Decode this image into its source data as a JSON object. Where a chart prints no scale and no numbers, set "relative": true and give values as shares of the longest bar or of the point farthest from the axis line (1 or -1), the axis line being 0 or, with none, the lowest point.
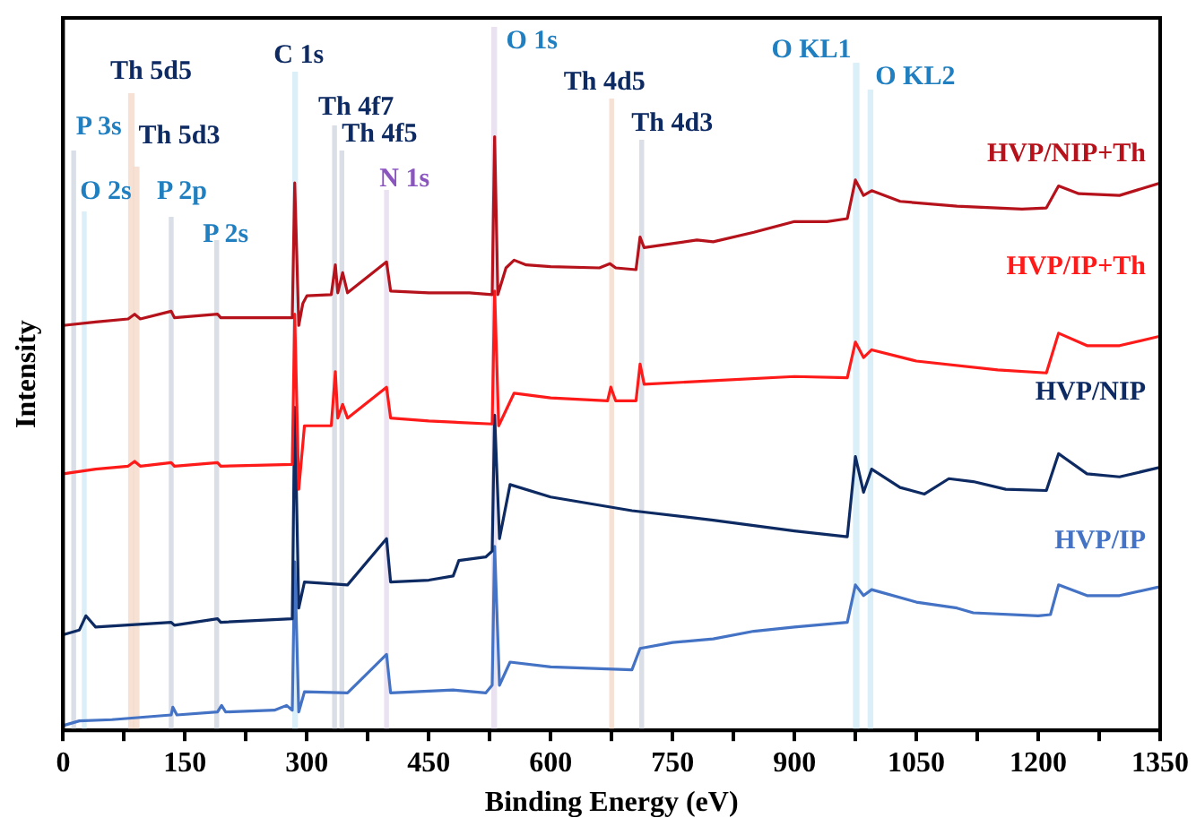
{
  "chart_data": {
    "type": "line",
    "xlabel": "Binding Energy (eV)",
    "ylabel": "Intensity",
    "relative": true,
    "legend": false,
    "grid": false,
    "marker": "none",
    "line_style": "solid",
    "xlim": [
      0,
      1350
    ],
    "xticks": [
      0,
      {
        "value": 75,
        "label": null
      },
      150,
      {
        "value": 225,
        "label": null
      },
      300,
      {
        "value": 375,
        "label": null
      },
      450,
      {
        "value": 525,
        "label": null
      },
      600,
      {
        "value": 675,
        "label": null
      },
      750,
      {
        "value": 825,
        "label": null
      },
      900,
      {
        "value": 975,
        "label": null
      },
      1050,
      {
        "value": 1125,
        "label": null
      },
      1200,
      {
        "value": 1275,
        "label": null
      },
      1350
    ],
    "series": [
      {
        "name": "HVP/NIP+Th",
        "color": "#b5121b",
        "x": [
          0,
          40,
          80,
          88,
          95,
          133,
          137,
          190,
          194,
          240,
          282,
          285,
          290,
          295,
          300,
          330,
          335,
          338,
          344,
          350,
          398,
          403,
          450,
          500,
          528,
          531,
          535,
          545,
          555,
          570,
          600,
          660,
          673,
          680,
          705,
          710,
          715,
          740,
          780,
          800,
          850,
          900,
          940,
          965,
          975,
          985,
          995,
          1030,
          1100,
          1180,
          1210,
          1225,
          1250,
          1300,
          1350
        ],
        "values": [
          0.682,
          0.688,
          0.693,
          0.701,
          0.693,
          0.706,
          0.695,
          0.701,
          0.695,
          0.695,
          0.695,
          0.922,
          0.682,
          0.719,
          0.732,
          0.734,
          0.784,
          0.737,
          0.771,
          0.737,
          0.789,
          0.74,
          0.737,
          0.737,
          0.734,
          1,
          0.734,
          0.779,
          0.792,
          0.784,
          0.781,
          0.779,
          0.786,
          0.779,
          0.776,
          0.831,
          0.813,
          0.818,
          0.826,
          0.823,
          0.839,
          0.857,
          0.857,
          0.862,
          0.927,
          0.901,
          0.909,
          0.891,
          0.883,
          0.878,
          0.88,
          0.917,
          0.904,
          0.901,
          0.922
        ]
      },
      {
        "name": "HVP/IP+Th",
        "color": "#ff1a1a",
        "x": [
          0,
          40,
          80,
          88,
          95,
          133,
          137,
          190,
          194,
          282,
          285,
          290,
          297,
          330,
          335,
          338,
          344,
          350,
          398,
          403,
          450,
          528,
          531,
          536,
          555,
          600,
          670,
          674,
          680,
          705,
          710,
          715,
          800,
          900,
          965,
          975,
          985,
          995,
          1050,
          1150,
          1210,
          1225,
          1260,
          1300,
          1350
        ],
        "values": [
          0.432,
          0.44,
          0.445,
          0.453,
          0.445,
          0.451,
          0.445,
          0.451,
          0.445,
          0.448,
          0.701,
          0.406,
          0.513,
          0.513,
          0.604,
          0.526,
          0.549,
          0.526,
          0.578,
          0.526,
          0.521,
          0.516,
          0.74,
          0.513,
          0.568,
          0.56,
          0.555,
          0.578,
          0.555,
          0.555,
          0.617,
          0.583,
          0.589,
          0.596,
          0.594,
          0.654,
          0.628,
          0.641,
          0.622,
          0.607,
          0.602,
          0.669,
          0.648,
          0.648,
          0.664
        ]
      },
      {
        "name": "HVP/NIP",
        "color": "#0d2a62",
        "x": [
          0,
          20,
          28,
          40,
          133,
          137,
          190,
          194,
          282,
          285,
          290,
          297,
          350,
          398,
          403,
          450,
          480,
          487,
          520,
          528,
          531,
          537,
          550,
          600,
          700,
          800,
          900,
          965,
          975,
          985,
          995,
          1030,
          1060,
          1090,
          1120,
          1160,
          1210,
          1225,
          1260,
          1300,
          1350
        ],
        "values": [
          0.161,
          0.169,
          0.193,
          0.174,
          0.182,
          0.177,
          0.188,
          0.182,
          0.188,
          0.544,
          0.206,
          0.25,
          0.245,
          0.323,
          0.25,
          0.253,
          0.26,
          0.286,
          0.292,
          0.302,
          0.531,
          0.323,
          0.414,
          0.393,
          0.37,
          0.354,
          0.336,
          0.326,
          0.461,
          0.401,
          0.44,
          0.409,
          0.398,
          0.424,
          0.419,
          0.406,
          0.404,
          0.466,
          0.432,
          0.427,
          0.443
        ]
      },
      {
        "name": "HVP/IP",
        "color": "#4472c4",
        "x": [
          0,
          20,
          60,
          133,
          135,
          140,
          190,
          195,
          200,
          260,
          275,
          282,
          285,
          290,
          297,
          350,
          398,
          403,
          480,
          520,
          528,
          531,
          537,
          550,
          600,
          700,
          710,
          750,
          800,
          850,
          900,
          965,
          975,
          985,
          995,
          1050,
          1100,
          1120,
          1200,
          1215,
          1225,
          1260,
          1300,
          1350
        ],
        "values": [
          0.008,
          0.016,
          0.018,
          0.026,
          0.039,
          0.026,
          0.031,
          0.042,
          0.031,
          0.034,
          0.042,
          0.034,
          0.284,
          0.031,
          0.065,
          0.063,
          0.128,
          0.063,
          0.068,
          0.063,
          0.076,
          0.31,
          0.076,
          0.115,
          0.107,
          0.102,
          0.138,
          0.148,
          0.154,
          0.167,
          0.174,
          0.182,
          0.245,
          0.227,
          0.237,
          0.216,
          0.206,
          0.198,
          0.193,
          0.195,
          0.245,
          0.227,
          0.227,
          0.242
        ]
      }
    ],
    "bands": [
      {
        "axis": "x",
        "from": 10,
        "to": 16,
        "label": "P 3s",
        "color": "#d3d9e3"
      },
      {
        "axis": "x",
        "from": 23,
        "to": 29,
        "label": "O 2s",
        "color": "#d4ecf7"
      },
      {
        "axis": "x",
        "from": 80,
        "to": 88,
        "label": "Th 5d5",
        "color": "#f4dccc"
      },
      {
        "axis": "x",
        "from": 86,
        "to": 94,
        "label": "Th 5d3",
        "color": "#f4dccc"
      },
      {
        "axis": "x",
        "from": 130,
        "to": 136,
        "label": "P 2p",
        "color": "#d3d9e3"
      },
      {
        "axis": "x",
        "from": 186,
        "to": 192,
        "label": "P 2s",
        "color": "#d3d9e3"
      },
      {
        "axis": "x",
        "from": 282,
        "to": 289,
        "label": "C 1s",
        "color": "#d4ecf7"
      },
      {
        "axis": "x",
        "from": 331,
        "to": 337,
        "label": "Th 4f7",
        "color": "#d3d9e3"
      },
      {
        "axis": "x",
        "from": 340,
        "to": 346,
        "label": "Th 4f5",
        "color": "#d3d9e3"
      },
      {
        "axis": "x",
        "from": 395,
        "to": 401,
        "label": "N 1s",
        "color": "#e6dcef"
      },
      {
        "axis": "x",
        "from": 527,
        "to": 534,
        "label": "O 1s",
        "color": "#e6dcef"
      },
      {
        "axis": "x",
        "from": 672,
        "to": 678,
        "label": "Th 4d5",
        "color": "#f4dccc"
      },
      {
        "axis": "x",
        "from": 709,
        "to": 715,
        "label": "Th 4d3",
        "color": "#d3d9e3"
      },
      {
        "axis": "x",
        "from": 972,
        "to": 980,
        "label": "O KL1",
        "color": "#d4ecf7"
      },
      {
        "axis": "x",
        "from": 990,
        "to": 997,
        "label": "O KL2",
        "color": "#d4ecf7"
      }
    ]
  }
}
